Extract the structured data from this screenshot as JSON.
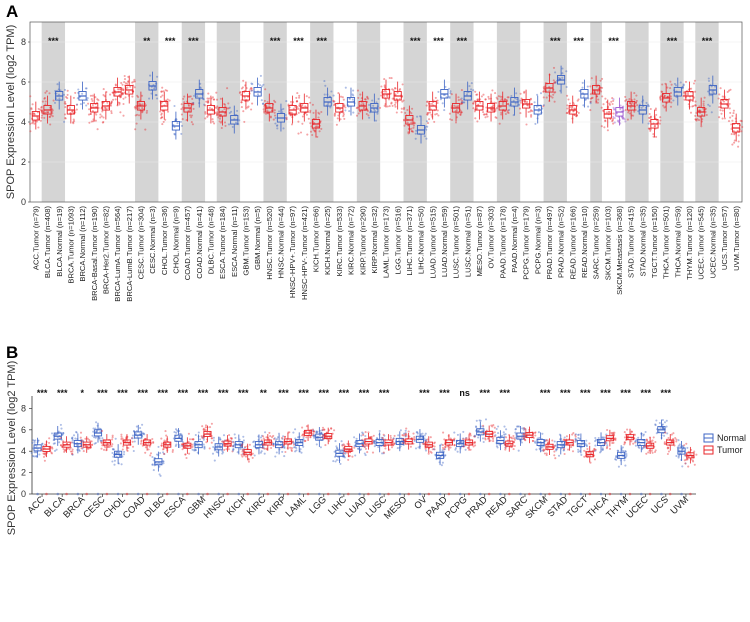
{
  "colors": {
    "tumor": "#e8262a",
    "normal": "#3d64c4",
    "metastasis": "#9b59d0",
    "shade": "#d5d5d5",
    "grid": "#ececec"
  },
  "panel_a": {
    "letter": "A",
    "ylabel": "SPOP Expression Level (log2 TPM)",
    "ylim": [
      0,
      9
    ],
    "yticks": [
      0,
      2,
      4,
      6,
      8
    ],
    "groups": [
      {
        "labels": [
          "ACC.Tumor (n=79)"
        ],
        "median": [
          4.3
        ],
        "shaded": false,
        "sig": ""
      },
      {
        "labels": [
          "BLCA.Tumor (n=408)",
          "BLCA.Normal (n=19)"
        ],
        "median": [
          4.6,
          5.3
        ],
        "shaded": true,
        "sig": "***"
      },
      {
        "labels": [
          "BRCA.Tumor (n=1093)",
          "BRCA.Normal (n=112)"
        ],
        "median": [
          4.6,
          5.3
        ],
        "shaded": false,
        "sig": ""
      },
      {
        "labels": [
          "BRCA-Basal.Tumor (n=190)",
          "BRCA-Her2.Tumor (n=82)",
          "BRCA-LumA.Tumor (n=564)",
          "BRCA-LumB.Tumor (n=217)"
        ],
        "median": [
          4.7,
          4.8,
          5.5,
          5.6
        ],
        "shaded": false,
        "sig": ""
      },
      {
        "labels": [
          "CESC.Tumor (n=304)",
          "CESC.Normal (n=3)"
        ],
        "median": [
          4.8,
          5.8
        ],
        "shaded": true,
        "sig": "**"
      },
      {
        "labels": [
          "CHOL.Tumor (n=36)",
          "CHOL.Normal (n=9)"
        ],
        "median": [
          4.8,
          3.8
        ],
        "shaded": false,
        "sig": "***"
      },
      {
        "labels": [
          "COAD.Tumor (n=457)",
          "COAD.Normal (n=41)"
        ],
        "median": [
          4.7,
          5.4
        ],
        "shaded": true,
        "sig": "***"
      },
      {
        "labels": [
          "DLBC.Tumor (n=48)"
        ],
        "median": [
          4.6
        ],
        "shaded": false,
        "sig": ""
      },
      {
        "labels": [
          "ESCA.Tumor (n=184)",
          "ESCA.Normal (n=11)"
        ],
        "median": [
          4.5,
          4.1
        ],
        "shaded": true,
        "sig": ""
      },
      {
        "labels": [
          "GBM.Tumor (n=153)",
          "GBM.Normal (n=5)"
        ],
        "median": [
          5.3,
          5.5
        ],
        "shaded": false,
        "sig": ""
      },
      {
        "labels": [
          "HNSC.Tumor (n=520)",
          "HNSC.Normal (n=44)"
        ],
        "median": [
          4.7,
          4.2
        ],
        "shaded": true,
        "sig": "***"
      },
      {
        "labels": [
          "HNSC-HPV+.Tumor (n=97)",
          "HNSC-HPV-.Tumor (n=421)"
        ],
        "median": [
          4.6,
          4.7
        ],
        "shaded": false,
        "sig": "***"
      },
      {
        "labels": [
          "KICH.Tumor (n=66)",
          "KICH.Normal (n=25)"
        ],
        "median": [
          3.9,
          5.0
        ],
        "shaded": true,
        "sig": "***"
      },
      {
        "labels": [
          "KIRC.Tumor (n=533)",
          "KIRC.Normal (n=72)"
        ],
        "median": [
          4.7,
          5.0
        ],
        "shaded": false,
        "sig": ""
      },
      {
        "labels": [
          "KIRP.Tumor (n=290)",
          "KIRP.Normal (n=32)"
        ],
        "median": [
          4.8,
          4.7
        ],
        "shaded": true,
        "sig": ""
      },
      {
        "labels": [
          "LAML.Tumor (n=173)"
        ],
        "median": [
          5.4
        ],
        "shaded": false,
        "sig": ""
      },
      {
        "labels": [
          "LGG.Tumor (n=516)"
        ],
        "median": [
          5.3
        ],
        "shaded": false,
        "sig": ""
      },
      {
        "labels": [
          "LIHC.Tumor (n=371)",
          "LIHC.Normal (n=50)"
        ],
        "median": [
          4.1,
          3.6
        ],
        "shaded": true,
        "sig": "***"
      },
      {
        "labels": [
          "LUAD.Tumor (n=515)",
          "LUAD.Normal (n=59)"
        ],
        "median": [
          4.8,
          5.4
        ],
        "shaded": false,
        "sig": "***"
      },
      {
        "labels": [
          "LUSC.Tumor (n=501)",
          "LUSC.Normal (n=51)"
        ],
        "median": [
          4.7,
          5.3
        ],
        "shaded": true,
        "sig": "***"
      },
      {
        "labels": [
          "MESO.Tumor (n=87)"
        ],
        "median": [
          4.8
        ],
        "shaded": false,
        "sig": ""
      },
      {
        "labels": [
          "OV.Tumor (n=303)"
        ],
        "median": [
          4.7
        ],
        "shaded": false,
        "sig": ""
      },
      {
        "labels": [
          "PAAD.Tumor (n=178)",
          "PAAD.Normal (n=4)"
        ],
        "median": [
          4.8,
          5.0
        ],
        "shaded": true,
        "sig": ""
      },
      {
        "labels": [
          "PCPG.Tumor (n=179)",
          "PCPG.Normal (n=3)"
        ],
        "median": [
          4.9,
          4.6
        ],
        "shaded": false,
        "sig": ""
      },
      {
        "labels": [
          "PRAD.Tumor (n=497)",
          "PRAD.Normal (n=52)"
        ],
        "median": [
          5.7,
          6.1
        ],
        "shaded": true,
        "sig": "***"
      },
      {
        "labels": [
          "READ.Tumor (n=166)",
          "READ.Normal (n=10)"
        ],
        "median": [
          4.6,
          5.4
        ],
        "shaded": false,
        "sig": "***"
      },
      {
        "labels": [
          "SARC.Tumor (n=259)"
        ],
        "median": [
          5.6
        ],
        "shaded": true,
        "sig": ""
      },
      {
        "labels": [
          "SKCM.Tumor (n=103)",
          "SKCM.Metastasis (n=368)"
        ],
        "median": [
          4.4,
          4.5
        ],
        "shaded": false,
        "sig": "***",
        "metastasis": 1
      },
      {
        "labels": [
          "STAD.Tumor (n=415)",
          "STAD.Normal (n=35)"
        ],
        "median": [
          4.8,
          4.6
        ],
        "shaded": true,
        "sig": ""
      },
      {
        "labels": [
          "TGCT.Tumor (n=150)"
        ],
        "median": [
          3.9
        ],
        "shaded": false,
        "sig": ""
      },
      {
        "labels": [
          "THCA.Tumor (n=501)",
          "THCA.Normal (n=59)"
        ],
        "median": [
          5.2,
          5.5
        ],
        "shaded": true,
        "sig": "***"
      },
      {
        "labels": [
          "THYM.Tumor (n=120)"
        ],
        "median": [
          5.3
        ],
        "shaded": false,
        "sig": ""
      },
      {
        "labels": [
          "UCEC.Tumor (n=545)",
          "UCEC.Normal (n=35)"
        ],
        "median": [
          4.5,
          5.6
        ],
        "shaded": true,
        "sig": "***"
      },
      {
        "labels": [
          "UCS.Tumor (n=57)"
        ],
        "median": [
          4.9
        ],
        "shaded": false,
        "sig": ""
      },
      {
        "labels": [
          "UVM.Tumor (n=80)"
        ],
        "median": [
          3.7
        ],
        "shaded": false,
        "sig": ""
      }
    ]
  },
  "panel_b": {
    "letter": "B",
    "ylabel": "SPOP Expression Level (log2 TPM)",
    "ylim": [
      0,
      8.6
    ],
    "yticks": [
      0,
      2,
      4,
      6,
      8
    ],
    "legend": [
      "Normal",
      "Tumor"
    ],
    "cancers": [
      {
        "name": "ACC",
        "sig": "***",
        "normal": 4.3,
        "tumor": 4.2
      },
      {
        "name": "BLCA",
        "sig": "***",
        "normal": 5.4,
        "tumor": 4.6
      },
      {
        "name": "BRCA",
        "sig": "*",
        "normal": 4.7,
        "tumor": 4.6
      },
      {
        "name": "CESC",
        "sig": "***",
        "normal": 5.7,
        "tumor": 4.8
      },
      {
        "name": "CHOL",
        "sig": "***",
        "normal": 3.7,
        "tumor": 4.8
      },
      {
        "name": "COAD",
        "sig": "***",
        "normal": 5.5,
        "tumor": 4.8
      },
      {
        "name": "DLBC",
        "sig": "***",
        "normal": 3.0,
        "tumor": 4.6
      },
      {
        "name": "ESCA",
        "sig": "***",
        "normal": 5.2,
        "tumor": 4.5
      },
      {
        "name": "GBM",
        "sig": "***",
        "normal": 4.6,
        "tumor": 5.6
      },
      {
        "name": "HNSC",
        "sig": "***",
        "normal": 4.4,
        "tumor": 4.7
      },
      {
        "name": "KICH",
        "sig": "***",
        "normal": 4.6,
        "tumor": 3.9
      },
      {
        "name": "KIRC",
        "sig": "**",
        "normal": 4.6,
        "tumor": 4.8
      },
      {
        "name": "KIRP",
        "sig": "***",
        "normal": 4.6,
        "tumor": 4.9
      },
      {
        "name": "LAML",
        "sig": "***",
        "normal": 4.8,
        "tumor": 5.7
      },
      {
        "name": "LGG",
        "sig": "***",
        "normal": 5.3,
        "tumor": 5.4
      },
      {
        "name": "LIHC",
        "sig": "***",
        "normal": 3.8,
        "tumor": 4.2
      },
      {
        "name": "LUAD",
        "sig": "***",
        "normal": 4.7,
        "tumor": 4.9
      },
      {
        "name": "LUSC",
        "sig": "***",
        "normal": 4.8,
        "tumor": 4.8
      },
      {
        "name": "MESO",
        "sig": "",
        "normal": 4.9,
        "tumor": 4.9
      },
      {
        "name": "OV",
        "sig": "***",
        "normal": 5.1,
        "tumor": 4.6
      },
      {
        "name": "PAAD",
        "sig": "***",
        "normal": 3.6,
        "tumor": 4.8
      },
      {
        "name": "PCPG",
        "sig": "ns",
        "normal": 4.7,
        "tumor": 4.8
      },
      {
        "name": "PRAD",
        "sig": "***",
        "normal": 5.8,
        "tumor": 5.6
      },
      {
        "name": "READ",
        "sig": "***",
        "normal": 5.0,
        "tumor": 4.7
      },
      {
        "name": "SARC",
        "sig": "",
        "normal": 5.4,
        "tumor": 5.5
      },
      {
        "name": "SKCM",
        "sig": "***",
        "normal": 4.8,
        "tumor": 4.4
      },
      {
        "name": "STAD",
        "sig": "***",
        "normal": 4.6,
        "tumor": 4.8
      },
      {
        "name": "TGCT",
        "sig": "***",
        "normal": 4.7,
        "tumor": 3.7
      },
      {
        "name": "THCA",
        "sig": "***",
        "normal": 4.8,
        "tumor": 5.2
      },
      {
        "name": "THYM",
        "sig": "***",
        "normal": 3.6,
        "tumor": 5.3
      },
      {
        "name": "UCEC",
        "sig": "***",
        "normal": 4.8,
        "tumor": 4.5
      },
      {
        "name": "UCS",
        "sig": "***",
        "normal": 6.0,
        "tumor": 4.8
      },
      {
        "name": "UVM",
        "sig": "",
        "normal": 4.0,
        "tumor": 3.6
      }
    ]
  }
}
